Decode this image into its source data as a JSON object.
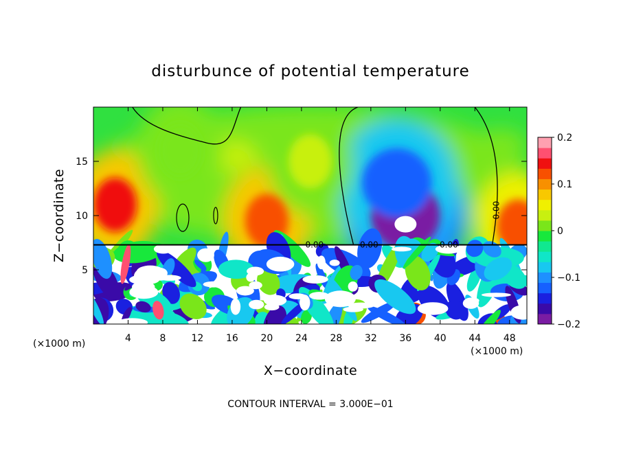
{
  "chart_data": {
    "type": "heatmap",
    "title": "disturbunce of potential temperature",
    "xlabel": "X−coordinate",
    "ylabel": "Z−coordinate",
    "x_unit": "(×1000 m)",
    "y_unit": "(×1000 m)",
    "xlim": [
      0,
      50
    ],
    "ylim": [
      0,
      20
    ],
    "xticks": [
      4,
      8,
      12,
      16,
      20,
      24,
      28,
      32,
      36,
      40,
      44,
      48
    ],
    "yticks": [
      5,
      10,
      15
    ],
    "colorbar": {
      "min": -0.2,
      "max": 0.2,
      "tick_values": [
        0.2,
        0.1,
        0,
        -0.1,
        -0.2
      ],
      "tick_labels": [
        "0.2",
        "0.1",
        "0",
        "−0.1",
        "−0.2"
      ],
      "colors": [
        "#7a1ca3",
        "#3a0aa8",
        "#1a20e0",
        "#1660ff",
        "#1e90ff",
        "#18c8f0",
        "#10e6c8",
        "#10e890",
        "#18e83c",
        "#7ae61a",
        "#c8f010",
        "#f0f000",
        "#f8c800",
        "#f89000",
        "#f85000",
        "#f01010",
        "#ff5070",
        "#ffa0b0"
      ]
    },
    "contour_labels": [
      "0.00",
      "0.00",
      "0.00",
      "0.00"
    ],
    "contour_interval_text": "CONTOUR INTERVAL = 3.000E−01",
    "grid": false,
    "features": [
      {
        "x": 2.5,
        "z": 11,
        "value": 0.15
      },
      {
        "x": 20,
        "z": 9.5,
        "value": 0.13
      },
      {
        "x": 49,
        "z": 9,
        "value": 0.12
      },
      {
        "x": 36,
        "z": 10,
        "value": -0.2
      },
      {
        "x": 35,
        "z": 13,
        "value": -0.13
      },
      {
        "x": 10,
        "z": 16,
        "value": 0.02
      },
      {
        "x": 25,
        "z": 15,
        "value": 0.03
      }
    ]
  }
}
